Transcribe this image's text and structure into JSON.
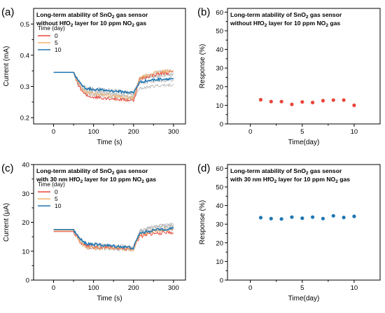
{
  "figure": {
    "panel_labels": [
      "(a)",
      "(b)",
      "(c)",
      "(d)"
    ],
    "colors": {
      "day0": "#e8473b",
      "day5": "#f2b36a",
      "day10": "#1f77b4",
      "gray_runs": "#b8b8b8",
      "response_a": "#e8473b",
      "response_b": "#1f77b4"
    }
  },
  "chart_data": [
    {
      "panel": "(a)",
      "type": "line",
      "title_lines": [
        [
          {
            "t": "Long-term atability of SnO"
          },
          {
            "t": "2",
            "sub": true
          },
          {
            "t": " gas sensor"
          }
        ],
        [
          {
            "t": "without HfO"
          },
          {
            "t": "2",
            "sub": true
          },
          {
            "t": " layer for 10 ppm NO"
          },
          {
            "t": "2",
            "sub": true
          },
          {
            "t": " gas"
          }
        ]
      ],
      "xlabel": "Time (s)",
      "ylabel": "Current (mA)",
      "xlim": [
        -50,
        330
      ],
      "ylim": [
        0.18,
        0.55
      ],
      "xticks": [
        0,
        100,
        200,
        300
      ],
      "yticks": [
        0.2,
        0.3,
        0.4,
        0.5
      ],
      "ytick_labels": [
        "0.2",
        "0.3",
        "0.4",
        "0.5"
      ],
      "legend_title": "Time (day)",
      "legend": [
        {
          "name": "0",
          "color": "#e8473b"
        },
        {
          "name": "5",
          "color": "#f2b36a"
        },
        {
          "name": "10",
          "color": "#1f77b4"
        }
      ],
      "model": {
        "base": 0.345,
        "low_start": 0.295,
        "low_end": 0.275,
        "high_end": 0.33,
        "gray": [
          {
            "low": 0.285,
            "lowEnd": 0.268,
            "high": 0.34
          },
          {
            "low": 0.272,
            "lowEnd": 0.258,
            "high": 0.305
          },
          {
            "low": 0.29,
            "lowEnd": 0.275,
            "high": 0.32
          },
          {
            "low": 0.28,
            "lowEnd": 0.265,
            "high": 0.35
          },
          {
            "low": 0.295,
            "lowEnd": 0.28,
            "high": 0.335
          }
        ],
        "series": [
          {
            "name": "0",
            "low": 0.268,
            "lowEnd": 0.255,
            "high": 0.345,
            "noise": 0.006
          },
          {
            "name": "5",
            "low": 0.278,
            "lowEnd": 0.262,
            "high": 0.35,
            "noise": 0.006
          },
          {
            "name": "10",
            "low": 0.292,
            "lowEnd": 0.28,
            "high": 0.325,
            "noise": 0.004
          }
        ]
      }
    },
    {
      "panel": "(b)",
      "type": "scatter",
      "title_lines": [
        [
          {
            "t": "Long-term atability of SnO"
          },
          {
            "t": "2",
            "sub": true
          },
          {
            "t": " gas sensor"
          }
        ],
        [
          {
            "t": "without HfO"
          },
          {
            "t": "2",
            "sub": true
          },
          {
            "t": " layer for 10 ppm NO"
          },
          {
            "t": "2",
            "sub": true
          },
          {
            "t": " gas"
          }
        ]
      ],
      "xlabel": "Time(day)",
      "ylabel": "Response (%)",
      "xlim": [
        -2.2,
        12.5
      ],
      "ylim": [
        0,
        62
      ],
      "xticks": [
        0,
        5,
        10
      ],
      "yticks": [
        0,
        10,
        20,
        30,
        40,
        50,
        60
      ],
      "x": [
        1,
        2,
        3,
        4,
        5,
        6,
        7,
        8,
        9,
        10
      ],
      "y": [
        13,
        12,
        12,
        10.5,
        11.8,
        11.5,
        12.5,
        12.8,
        12.8,
        10
      ]
    },
    {
      "panel": "(c)",
      "type": "line",
      "title_lines": [
        [
          {
            "t": "Long-term atability of SnO"
          },
          {
            "t": "2",
            "sub": true
          },
          {
            "t": " gas sensor"
          }
        ],
        [
          {
            "t": "with 30 nm HfO"
          },
          {
            "t": "2",
            "sub": true
          },
          {
            "t": " layer for 10 ppm NO"
          },
          {
            "t": "2",
            "sub": true
          },
          {
            "t": " gas"
          }
        ]
      ],
      "xlabel": "Time (s)",
      "ylabel": "Current (μA)",
      "xlim": [
        -50,
        330
      ],
      "ylim": [
        0,
        40
      ],
      "xticks": [
        0,
        100,
        200,
        300
      ],
      "yticks": [
        0,
        10,
        20,
        30,
        40
      ],
      "ytick_labels": [
        "0",
        "10",
        "20",
        "30",
        "40"
      ],
      "legend_title": "Time (day)",
      "legend": [
        {
          "name": "0",
          "color": "#e8473b"
        },
        {
          "name": "5",
          "color": "#f2b36a"
        },
        {
          "name": "10",
          "color": "#1f77b4"
        }
      ],
      "model": {
        "base": 17.5,
        "gray": [
          {
            "low": 12,
            "lowEnd": 11,
            "high": 18.5
          },
          {
            "low": 11.5,
            "lowEnd": 10.5,
            "high": 19
          },
          {
            "low": 12.5,
            "lowEnd": 11.5,
            "high": 17.5
          },
          {
            "low": 11,
            "lowEnd": 10.5,
            "high": 18
          },
          {
            "low": 12.2,
            "lowEnd": 11,
            "high": 19.2
          }
        ],
        "series": [
          {
            "name": "0",
            "base": 16.8,
            "low": 11.5,
            "lowEnd": 10.8,
            "high": 16.5,
            "noise": 0.6
          },
          {
            "name": "5",
            "base": 17.2,
            "low": 11.2,
            "lowEnd": 10.5,
            "high": 17.5,
            "noise": 0.6
          },
          {
            "name": "10",
            "base": 17.5,
            "low": 12.5,
            "lowEnd": 11.2,
            "high": 17.8,
            "noise": 0.5
          }
        ]
      }
    },
    {
      "panel": "(d)",
      "type": "scatter",
      "title_lines": [
        [
          {
            "t": "Long-term atability of SnO"
          },
          {
            "t": "2",
            "sub": true
          },
          {
            "t": " gas sensor"
          }
        ],
        [
          {
            "t": "with 30 nm HfO"
          },
          {
            "t": "2",
            "sub": true
          },
          {
            "t": " layer for 10 ppm NO"
          },
          {
            "t": "2",
            "sub": true
          },
          {
            "t": " gas"
          }
        ]
      ],
      "xlabel": "Time(day)",
      "ylabel": "Response (%)",
      "xlim": [
        -2.2,
        12.5
      ],
      "ylim": [
        0,
        62
      ],
      "xticks": [
        0,
        5,
        10
      ],
      "yticks": [
        0,
        10,
        20,
        30,
        40,
        50,
        60
      ],
      "x": [
        1,
        2,
        3,
        4,
        5,
        6,
        7,
        8,
        9,
        10
      ],
      "y": [
        33.5,
        33,
        32.8,
        33.8,
        33.2,
        33.8,
        33,
        34.5,
        33.6,
        34.2
      ]
    }
  ]
}
